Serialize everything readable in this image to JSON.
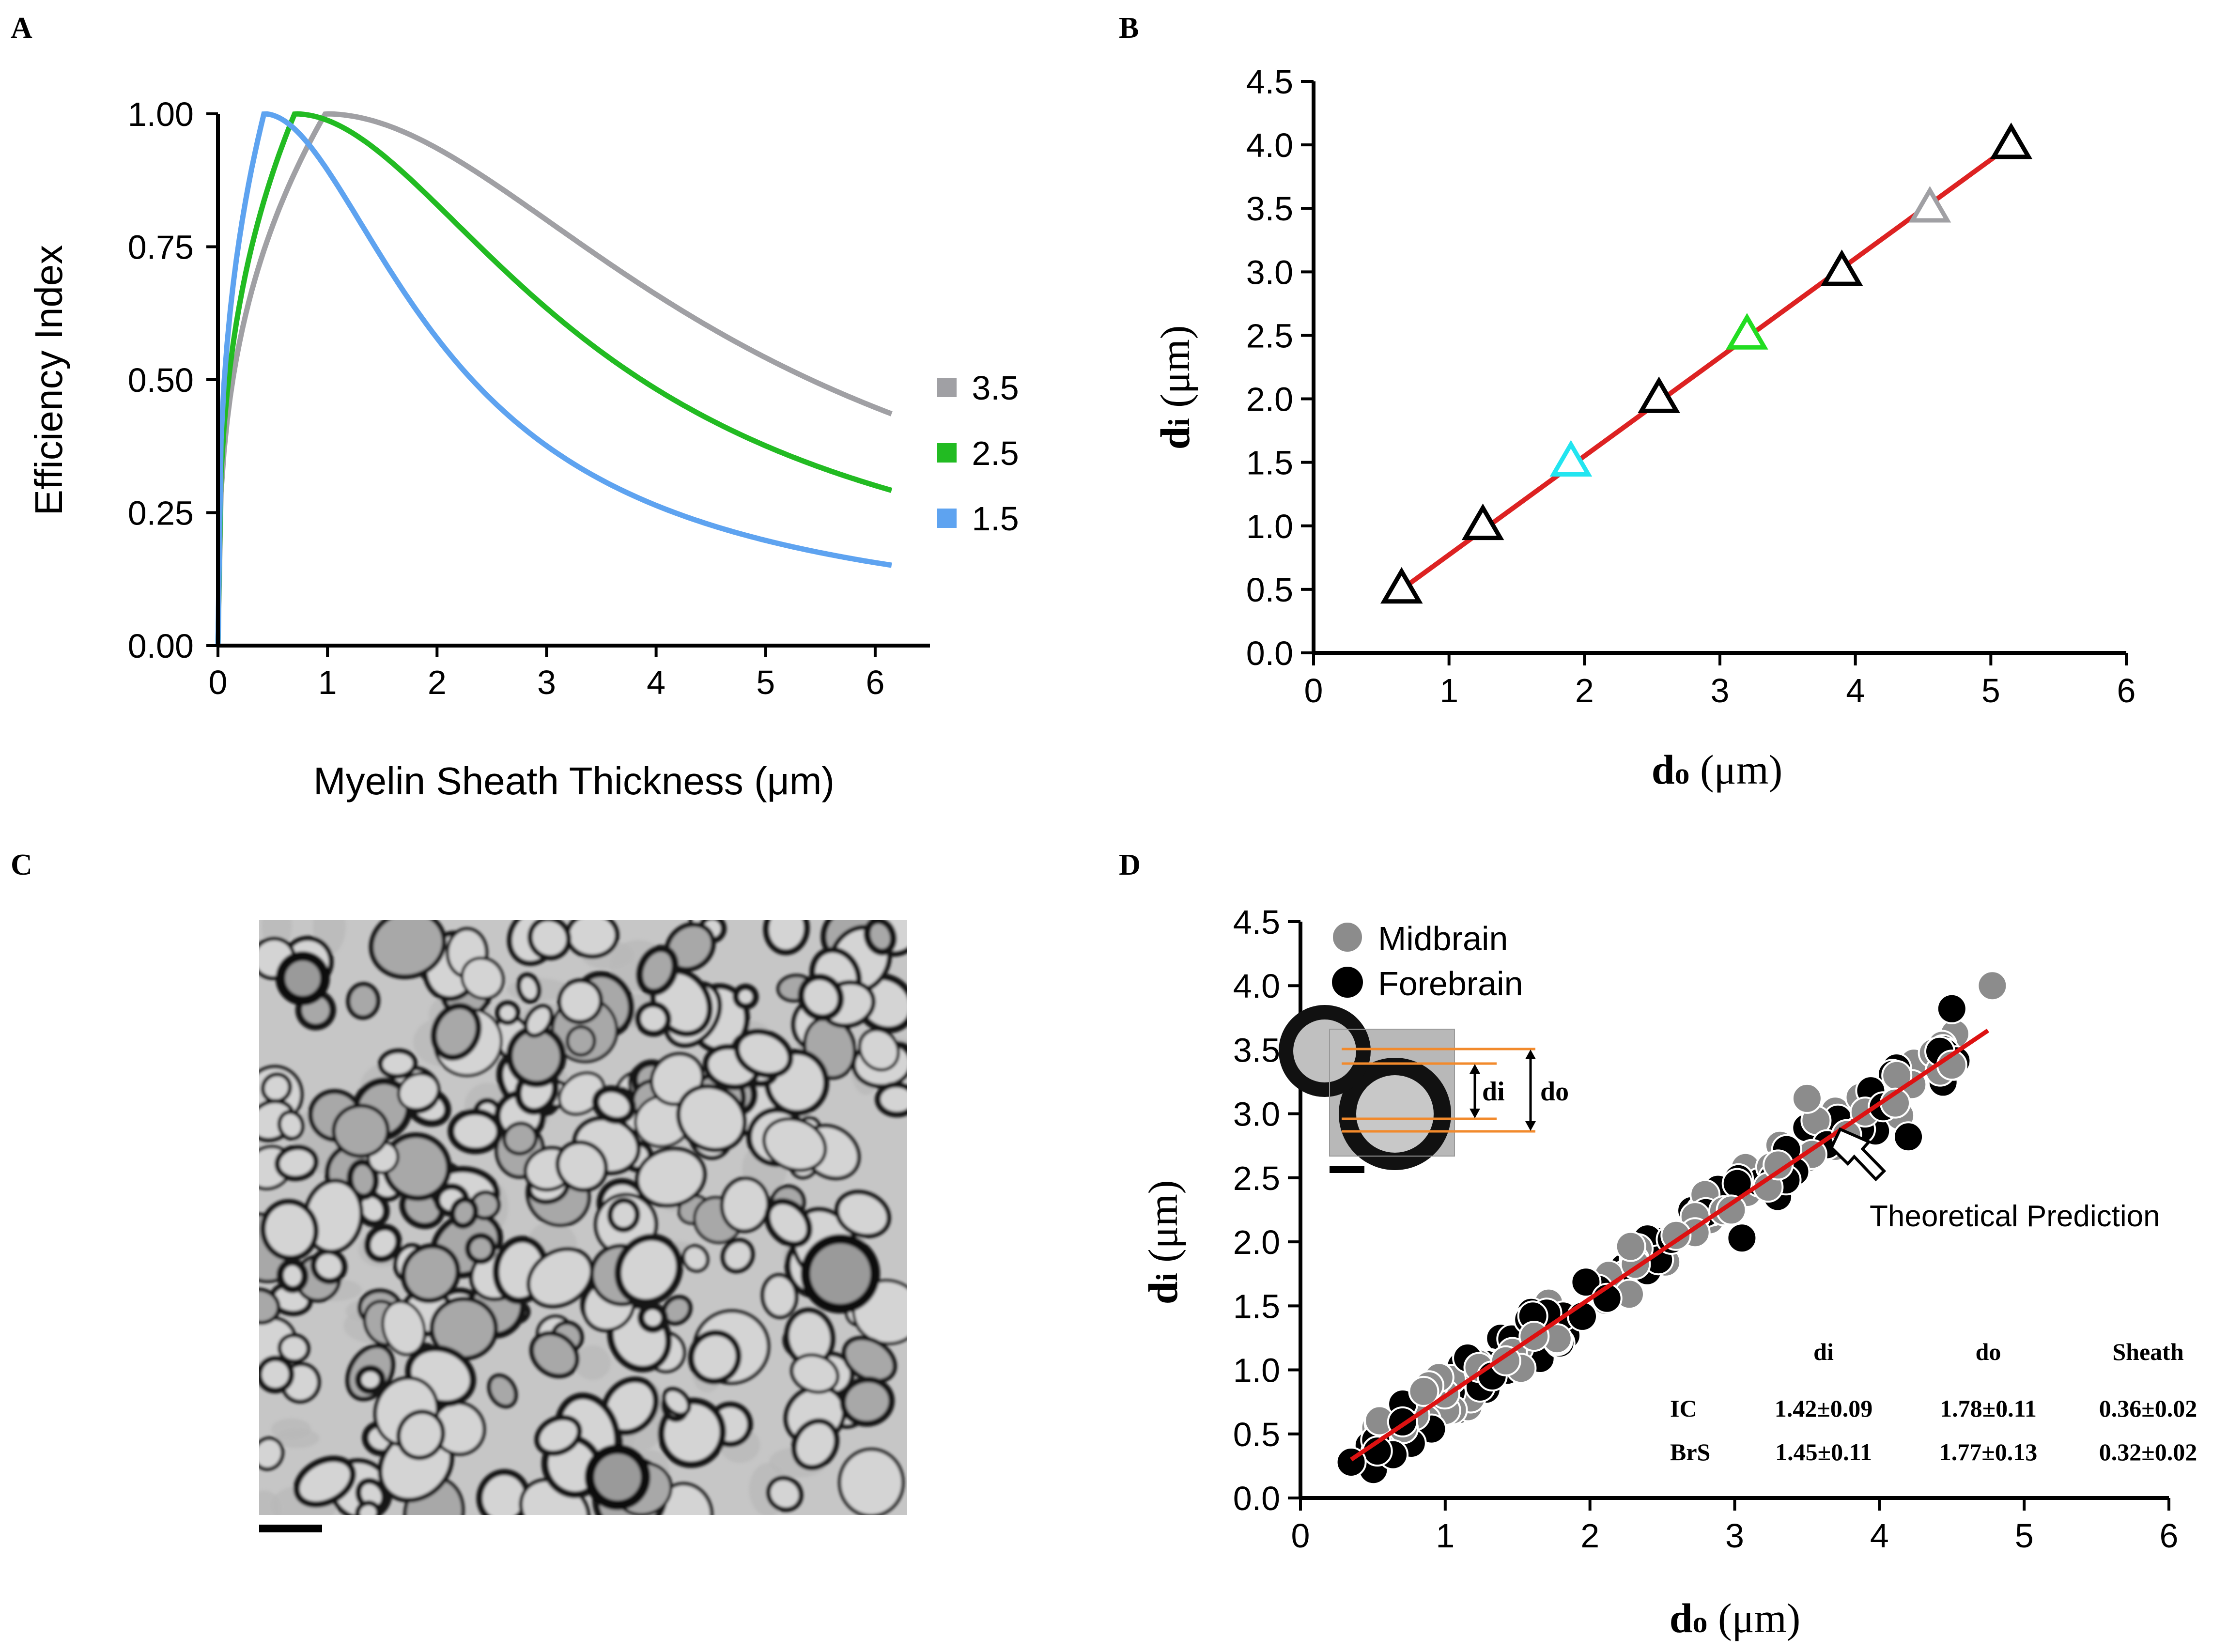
{
  "panels": {
    "A": {
      "letter": "A"
    },
    "B": {
      "letter": "B"
    },
    "C": {
      "letter": "C"
    },
    "D": {
      "letter": "D"
    }
  },
  "chart_data": [
    {
      "id": "A",
      "type": "line",
      "xlabel": "Myelin Sheath Thickness (μm)",
      "ylabel": "Efficiency Index",
      "xlim": [
        0,
        6.5
      ],
      "ylim": [
        0,
        1.0
      ],
      "xticks": [
        "0",
        "1",
        "2",
        "3",
        "4",
        "5",
        "6"
      ],
      "yticks": [
        "0.00",
        "0.25",
        "0.50",
        "0.75",
        "1.00"
      ],
      "legend_position": "right",
      "series": [
        {
          "name": "3.5",
          "color": "#a0a0a4",
          "axon": 3.5
        },
        {
          "name": "2.5",
          "color": "#22bb22",
          "axon": 2.5
        },
        {
          "name": "1.5",
          "color": "#5ea3f0",
          "axon": 1.5
        }
      ]
    },
    {
      "id": "B",
      "type": "scatter",
      "xlabel_main": "d",
      "xlabel_sub": "o",
      "xlabel_unit": " (μm)",
      "ylabel_main": "d",
      "ylabel_sub": "i",
      "ylabel_unit": " (μm)",
      "xlim": [
        0,
        6
      ],
      "ylim": [
        0,
        4.5
      ],
      "xticks": [
        "0",
        "1",
        "2",
        "3",
        "4",
        "5",
        "6"
      ],
      "yticks": [
        "0.0",
        "0.5",
        "1.0",
        "1.5",
        "2.0",
        "2.5",
        "3.0",
        "3.5",
        "4.0",
        "4.5"
      ],
      "fit_line_color": "#dd2222",
      "points": [
        {
          "x": 0.65,
          "y": 0.5,
          "color": "#000000"
        },
        {
          "x": 1.25,
          "y": 1.0,
          "color": "#000000"
        },
        {
          "x": 1.9,
          "y": 1.5,
          "color": "#22e5f0"
        },
        {
          "x": 2.55,
          "y": 2.0,
          "color": "#000000"
        },
        {
          "x": 3.2,
          "y": 2.5,
          "color": "#22dd22"
        },
        {
          "x": 3.9,
          "y": 3.0,
          "color": "#000000"
        },
        {
          "x": 4.55,
          "y": 3.5,
          "color": "#a0a0a4"
        },
        {
          "x": 5.15,
          "y": 4.0,
          "color": "#000000"
        }
      ]
    },
    {
      "id": "D",
      "type": "scatter",
      "xlabel_main": "d",
      "xlabel_sub": "o",
      "xlabel_unit": " (μm)",
      "ylabel_main": "d",
      "ylabel_sub": "i",
      "ylabel_unit": " (μm)",
      "xlim": [
        0,
        6
      ],
      "ylim": [
        0,
        4.5
      ],
      "xticks": [
        "0",
        "1",
        "2",
        "3",
        "4",
        "5",
        "6"
      ],
      "yticks": [
        "0.0",
        "0.5",
        "1.0",
        "1.5",
        "2.0",
        "2.5",
        "3.0",
        "3.5",
        "4.0",
        "4.5"
      ],
      "legend_position": "top-left",
      "series": [
        {
          "name": "Midbrain",
          "color": "#8c8c8c"
        },
        {
          "name": "Forebrain",
          "color": "#000000"
        }
      ],
      "fit_line": {
        "x": [
          0.35,
          4.75
        ],
        "y": [
          0.3,
          3.65
        ],
        "color": "#dd1111"
      },
      "annotation": "Theoretical Prediction",
      "inset": {
        "label_inner": "di",
        "label_outer": "do"
      },
      "table": {
        "headers": [
          "di",
          "do",
          "Sheath"
        ],
        "rows": [
          {
            "label": "IC",
            "values": [
              "1.42±0.09",
              "1.78±0.11",
              "0.36±0.02"
            ]
          },
          {
            "label": "BrS",
            "values": [
              "1.45±0.11",
              "1.77±0.13",
              "0.32±0.02"
            ]
          }
        ]
      }
    }
  ]
}
